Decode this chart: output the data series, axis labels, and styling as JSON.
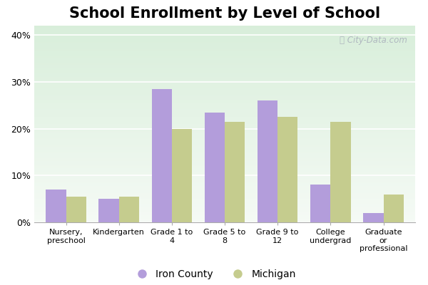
{
  "title": "School Enrollment by Level of School",
  "categories": [
    "Nursery,\npreschool",
    "Kindergarten",
    "Grade 1 to\n4",
    "Grade 5 to\n8",
    "Grade 9 to\n12",
    "College\nundergrad",
    "Graduate\nor\nprofessional"
  ],
  "iron_county": [
    7.0,
    5.0,
    28.5,
    23.5,
    26.0,
    8.0,
    2.0
  ],
  "michigan": [
    5.5,
    5.5,
    20.0,
    21.5,
    22.5,
    21.5,
    6.0
  ],
  "iron_color": "#b39ddb",
  "michigan_color": "#c5cc8e",
  "ylim": [
    0,
    42
  ],
  "yticks": [
    0,
    10,
    20,
    30,
    40
  ],
  "ytick_labels": [
    "0%",
    "10%",
    "20%",
    "30%",
    "40%"
  ],
  "legend_iron": "Iron County",
  "legend_michigan": "Michigan",
  "bar_width": 0.38,
  "title_fontsize": 15
}
